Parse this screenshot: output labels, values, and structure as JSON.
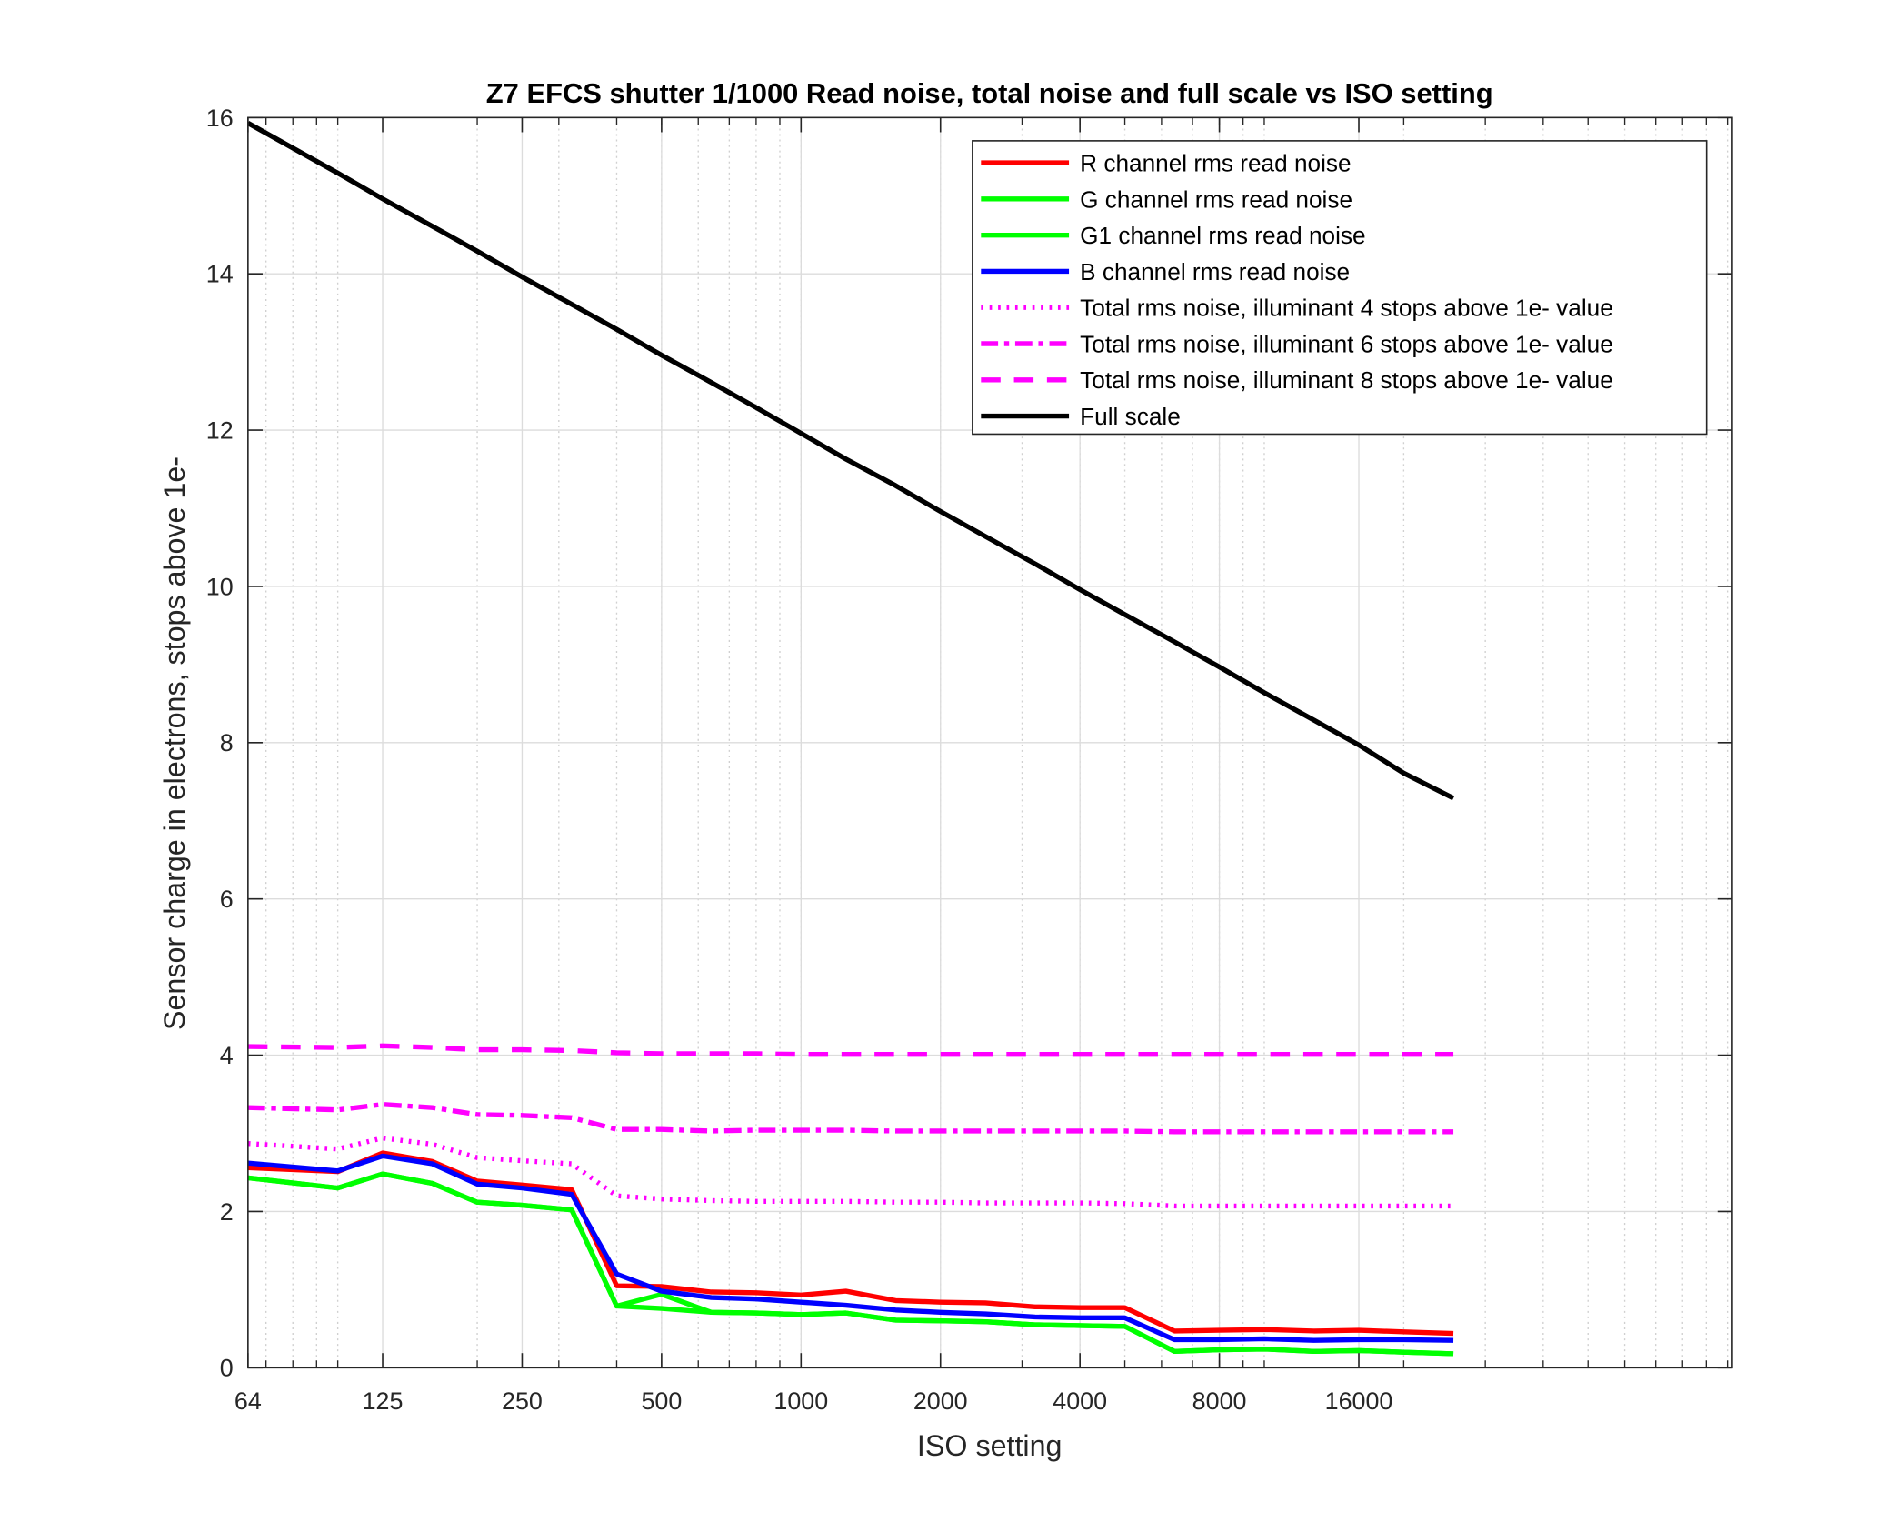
{
  "chart_data": {
    "type": "line",
    "title": "Z7 EFCS shutter 1/1000 Read noise, total noise and full scale vs ISO setting",
    "xlabel": "ISO setting",
    "ylabel": "Sensor charge in electrons, stops above 1e-",
    "xscale": "log",
    "xlim": [
      64,
      102400
    ],
    "ylim": [
      0,
      16
    ],
    "xticks": [
      64,
      125,
      250,
      500,
      1000,
      2000,
      4000,
      8000,
      16000
    ],
    "xtick_labels": [
      "64",
      "125",
      "250",
      "500",
      "1000",
      "2000",
      "4000",
      "8000",
      "16000"
    ],
    "yticks": [
      0,
      2,
      4,
      6,
      8,
      10,
      12,
      14,
      16
    ],
    "ytick_labels": [
      "0",
      "2",
      "4",
      "6",
      "8",
      "10",
      "12",
      "14",
      "16"
    ],
    "grid": true,
    "legend_position": "top-right",
    "x": [
      64,
      100,
      125,
      160,
      200,
      250,
      320,
      400,
      500,
      640,
      800,
      1000,
      1250,
      1600,
      2000,
      2500,
      3200,
      4000,
      5000,
      6400,
      8000,
      10000,
      12800,
      16000,
      20000,
      25600
    ],
    "series": [
      {
        "name": "R channel rms read noise",
        "color": "#FF0000",
        "style": "solid",
        "values": [
          2.56,
          2.51,
          2.75,
          2.64,
          2.39,
          2.34,
          2.28,
          1.05,
          1.04,
          0.97,
          0.96,
          0.93,
          0.98,
          0.86,
          0.84,
          0.83,
          0.78,
          0.77,
          0.77,
          0.47,
          0.48,
          0.49,
          0.47,
          0.48,
          0.46,
          0.44
        ]
      },
      {
        "name": "G channel rms read noise",
        "color": "#00FF00",
        "style": "solid",
        "values": [
          2.43,
          2.3,
          2.48,
          2.36,
          2.12,
          2.08,
          2.02,
          0.79,
          0.94,
          0.71,
          0.7,
          0.68,
          0.7,
          0.61,
          0.6,
          0.59,
          0.55,
          0.54,
          0.53,
          0.21,
          0.23,
          0.24,
          0.21,
          0.22,
          0.2,
          0.18
        ]
      },
      {
        "name": "G1 channel rms read noise",
        "color": "#00FF00",
        "style": "solid",
        "values": [
          2.43,
          2.3,
          2.48,
          2.36,
          2.12,
          2.08,
          2.02,
          0.79,
          0.76,
          0.71,
          0.7,
          0.68,
          0.7,
          0.61,
          0.6,
          0.59,
          0.55,
          0.54,
          0.53,
          0.21,
          0.23,
          0.24,
          0.21,
          0.22,
          0.2,
          0.18
        ]
      },
      {
        "name": "B channel rms read noise",
        "color": "#0000FF",
        "style": "solid",
        "values": [
          2.62,
          2.52,
          2.71,
          2.61,
          2.35,
          2.3,
          2.22,
          1.2,
          0.98,
          0.9,
          0.88,
          0.84,
          0.8,
          0.74,
          0.71,
          0.69,
          0.65,
          0.64,
          0.64,
          0.36,
          0.36,
          0.37,
          0.35,
          0.36,
          0.36,
          0.35
        ]
      },
      {
        "name": "Total rms noise, illuminant 4 stops above 1e- value",
        "color": "#FF00FF",
        "style": "dotted",
        "values": [
          2.87,
          2.8,
          2.94,
          2.86,
          2.69,
          2.65,
          2.61,
          2.2,
          2.16,
          2.14,
          2.13,
          2.13,
          2.13,
          2.12,
          2.12,
          2.11,
          2.11,
          2.11,
          2.1,
          2.07,
          2.07,
          2.07,
          2.07,
          2.07,
          2.07,
          2.07
        ]
      },
      {
        "name": "Total rms noise, illuminant 6 stops above 1e- value",
        "color": "#FF00FF",
        "style": "dashdot",
        "values": [
          3.33,
          3.3,
          3.37,
          3.33,
          3.24,
          3.23,
          3.2,
          3.05,
          3.05,
          3.03,
          3.04,
          3.04,
          3.04,
          3.03,
          3.03,
          3.03,
          3.03,
          3.03,
          3.03,
          3.02,
          3.02,
          3.02,
          3.02,
          3.02,
          3.02,
          3.02
        ]
      },
      {
        "name": "Total rms noise, illuminant 8 stops above 1e- value",
        "color": "#FF00FF",
        "style": "dashed",
        "values": [
          4.11,
          4.1,
          4.12,
          4.1,
          4.07,
          4.07,
          4.06,
          4.03,
          4.02,
          4.02,
          4.02,
          4.01,
          4.01,
          4.01,
          4.01,
          4.01,
          4.01,
          4.01,
          4.01,
          4.01,
          4.01,
          4.01,
          4.01,
          4.01,
          4.01,
          4.01
        ]
      },
      {
        "name": "Full scale",
        "color": "#000000",
        "style": "solid",
        "values": [
          15.93,
          15.29,
          14.96,
          14.61,
          14.29,
          13.96,
          13.61,
          13.29,
          12.96,
          12.61,
          12.29,
          11.96,
          11.63,
          11.29,
          10.96,
          10.64,
          10.29,
          9.96,
          9.64,
          9.29,
          8.97,
          8.64,
          8.29,
          7.97,
          7.61,
          7.29
        ]
      }
    ]
  }
}
